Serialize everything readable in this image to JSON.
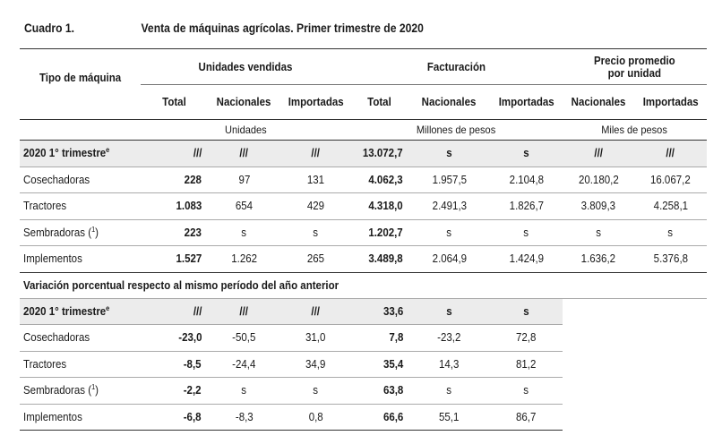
{
  "caption": {
    "number": "Cuadro 1.",
    "title": "Venta de máquinas agrícolas. Primer trimestre de 2020"
  },
  "header": {
    "row_label": "Tipo de máquina",
    "groups": {
      "unidades": "Unidades vendidas",
      "facturacion": "Facturación",
      "precio_line1": "Precio promedio",
      "precio_line2": "por unidad"
    },
    "subcols": {
      "total1": "Total",
      "nac1": "Nacionales",
      "imp1": "Importadas",
      "total2": "Total",
      "nac2": "Nacionales",
      "imp2": "Importadas",
      "nac3": "Nacionales",
      "imp3": "Importadas"
    },
    "units": {
      "unidades": "Unidades",
      "millones": "Millones de pesos",
      "miles": "Miles de pesos"
    }
  },
  "section1": {
    "summary": {
      "label": "2020 1° trimestre",
      "sup": "e",
      "cells": [
        "///",
        "///",
        "///",
        "13.072,7",
        "s",
        "s",
        "///",
        "///"
      ]
    },
    "rows": [
      {
        "label": "Cosechadoras",
        "sup": "",
        "cells": [
          "228",
          "97",
          "131",
          "4.062,3",
          "1.957,5",
          "2.104,8",
          "20.180,2",
          "16.067,2"
        ]
      },
      {
        "label": "Tractores",
        "sup": "",
        "cells": [
          "1.083",
          "654",
          "429",
          "4.318,0",
          "2.491,3",
          "1.826,7",
          "3.809,3",
          "4.258,1"
        ]
      },
      {
        "label": "Sembradoras (",
        "sup": "1",
        "suffix": ")",
        "cells": [
          "223",
          "s",
          "s",
          "1.202,7",
          "s",
          "s",
          "s",
          "s"
        ]
      },
      {
        "label": "Implementos",
        "sup": "",
        "cells": [
          "1.527",
          "1.262",
          "265",
          "3.489,8",
          "2.064,9",
          "1.424,9",
          "1.636,2",
          "5.376,8"
        ]
      }
    ]
  },
  "section2": {
    "heading": "Variación porcentual respecto al mismo período del año anterior",
    "summary": {
      "label": "2020 1° trimestre",
      "sup": "e",
      "cells": [
        "///",
        "///",
        "///",
        "33,6",
        "s",
        "s"
      ]
    },
    "rows": [
      {
        "label": "Cosechadoras",
        "sup": "",
        "cells": [
          "-23,0",
          "-50,5",
          "31,0",
          "7,8",
          "-23,2",
          "72,8"
        ]
      },
      {
        "label": "Tractores",
        "sup": "",
        "cells": [
          "-8,5",
          "-24,4",
          "34,9",
          "35,4",
          "14,3",
          "81,2"
        ]
      },
      {
        "label": "Sembradoras (",
        "sup": "1",
        "suffix": ")",
        "cells": [
          "-2,2",
          "s",
          "s",
          "63,8",
          "s",
          "s"
        ]
      },
      {
        "label": "Implementos",
        "sup": "",
        "cells": [
          "-6,8",
          "-8,3",
          "0,8",
          "66,6",
          "55,1",
          "86,7"
        ]
      }
    ]
  }
}
